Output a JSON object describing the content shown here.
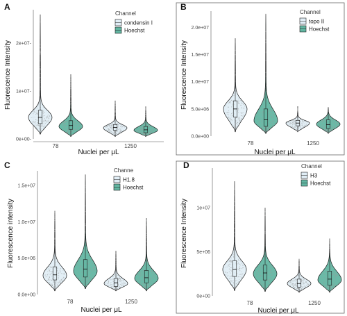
{
  "colors": {
    "first": "#e1eef6",
    "hoechst": "#62b6a2",
    "outline": "#1a1a1a",
    "points": "#9a9a9a",
    "axis": "#555555"
  },
  "chart_data": [
    {
      "type": "violin",
      "panel": "A",
      "ylabel": "Fluorescence Intensity",
      "xlabel": "Nuclei per μL",
      "categories": [
        "78",
        "1250"
      ],
      "ylim": [
        0,
        27000000
      ],
      "yticks": [
        0,
        10000000,
        20000000
      ],
      "ytick_labels": [
        "0e+00-",
        "1e+07-",
        "2e+07-"
      ],
      "legend": {
        "title": "Channel",
        "position": "right"
      },
      "series": [
        {
          "name": "condensin I",
          "color": "#e1eef6",
          "groups": [
            {
              "min": 1000000,
              "q1": 3200000,
              "median": 4500000,
              "q3": 6000000,
              "max": 26000000,
              "mode": 4500000
            },
            {
              "min": 500000,
              "q1": 1800000,
              "median": 2400000,
              "q3": 3000000,
              "max": 8000000,
              "mode": 2300000
            }
          ]
        },
        {
          "name": "Hoechst",
          "color": "#62b6a2",
          "groups": [
            {
              "min": 500000,
              "q1": 2000000,
              "median": 2800000,
              "q3": 3800000,
              "max": 13500000,
              "mode": 2600000
            },
            {
              "min": 500000,
              "q1": 1300000,
              "median": 1900000,
              "q3": 2600000,
              "max": 6800000,
              "mode": 1800000
            }
          ]
        }
      ]
    },
    {
      "type": "violin",
      "panel": "B",
      "ylabel": "Fluorescence Intensity",
      "xlabel": "Nuclei per μL",
      "categories": [
        "78",
        "1250"
      ],
      "ylim": [
        0,
        23000000
      ],
      "yticks": [
        0,
        5000000,
        10000000,
        15000000,
        20000000
      ],
      "ytick_labels": [
        "0.0e+00",
        "5.0e+06",
        "1.0e+07",
        "1.5e+07",
        "2.0e+07"
      ],
      "legend": {
        "title": "Channel",
        "position": "right"
      },
      "series": [
        {
          "name": "topo II",
          "color": "#e1eef6",
          "groups": [
            {
              "min": 800000,
              "q1": 3500000,
              "median": 5000000,
              "q3": 6500000,
              "max": 18000000,
              "mode": 5000000
            },
            {
              "min": 800000,
              "q1": 1900000,
              "median": 2400000,
              "q3": 2900000,
              "max": 5500000,
              "mode": 2400000
            }
          ]
        },
        {
          "name": "Hoechst",
          "color": "#62b6a2",
          "groups": [
            {
              "min": 500000,
              "q1": 1800000,
              "median": 3000000,
              "q3": 5000000,
              "max": 22500000,
              "mode": 2800000
            },
            {
              "min": 500000,
              "q1": 1400000,
              "median": 2100000,
              "q3": 3000000,
              "max": 5300000,
              "mode": 2200000
            }
          ]
        }
      ]
    },
    {
      "type": "violin",
      "panel": "C",
      "ylabel": "Fluorescence intensity",
      "xlabel": "Nuclei per μL",
      "categories": [
        "78",
        "1250"
      ],
      "ylim": [
        0,
        17000000
      ],
      "yticks": [
        0,
        5000000,
        10000000,
        15000000
      ],
      "ytick_labels": [
        "0.0e+00",
        "5.0e+06",
        "1.0e+07",
        "1.5e+07"
      ],
      "legend": {
        "title": "Channe",
        "position": "right"
      },
      "series": [
        {
          "name": "H1.8",
          "color": "#e1eef6",
          "groups": [
            {
              "min": 500000,
              "q1": 2000000,
              "median": 2700000,
              "q3": 3800000,
              "max": 11500000,
              "mode": 2600000
            },
            {
              "min": 500000,
              "q1": 1100000,
              "median": 1600000,
              "q3": 2200000,
              "max": 6000000,
              "mode": 1500000
            }
          ]
        },
        {
          "name": "Hoechst",
          "color": "#62b6a2",
          "groups": [
            {
              "min": 800000,
              "q1": 2400000,
              "median": 3500000,
              "q3": 4800000,
              "max": 16500000,
              "mode": 3200000
            },
            {
              "min": 500000,
              "q1": 1600000,
              "median": 2300000,
              "q3": 3300000,
              "max": 10500000,
              "mode": 2200000
            }
          ]
        }
      ]
    },
    {
      "type": "violin",
      "panel": "D",
      "ylabel": "Fluorescence Intensity",
      "xlabel": "Nuclei per μL",
      "categories": [
        "78",
        "1250"
      ],
      "ylim": [
        0,
        14500000
      ],
      "yticks": [
        0,
        5000000,
        10000000
      ],
      "ytick_labels": [
        "0e+00",
        "5e+06",
        "1e+07"
      ],
      "legend": {
        "title": "Channel",
        "position": "right"
      },
      "series": [
        {
          "name": "H3",
          "color": "#e1eef6",
          "groups": [
            {
              "min": 600000,
              "q1": 2200000,
              "median": 3000000,
              "q3": 4000000,
              "max": 13000000,
              "mode": 3000000
            },
            {
              "min": 400000,
              "q1": 1000000,
              "median": 1400000,
              "q3": 1900000,
              "max": 4200000,
              "mode": 1400000
            }
          ]
        },
        {
          "name": "Hoechst",
          "color": "#62b6a2",
          "groups": [
            {
              "min": 500000,
              "q1": 1800000,
              "median": 2600000,
              "q3": 3500000,
              "max": 10000000,
              "mode": 2500000
            },
            {
              "min": 400000,
              "q1": 1200000,
              "median": 1900000,
              "q3": 2800000,
              "max": 6500000,
              "mode": 1800000
            }
          ]
        }
      ]
    }
  ]
}
